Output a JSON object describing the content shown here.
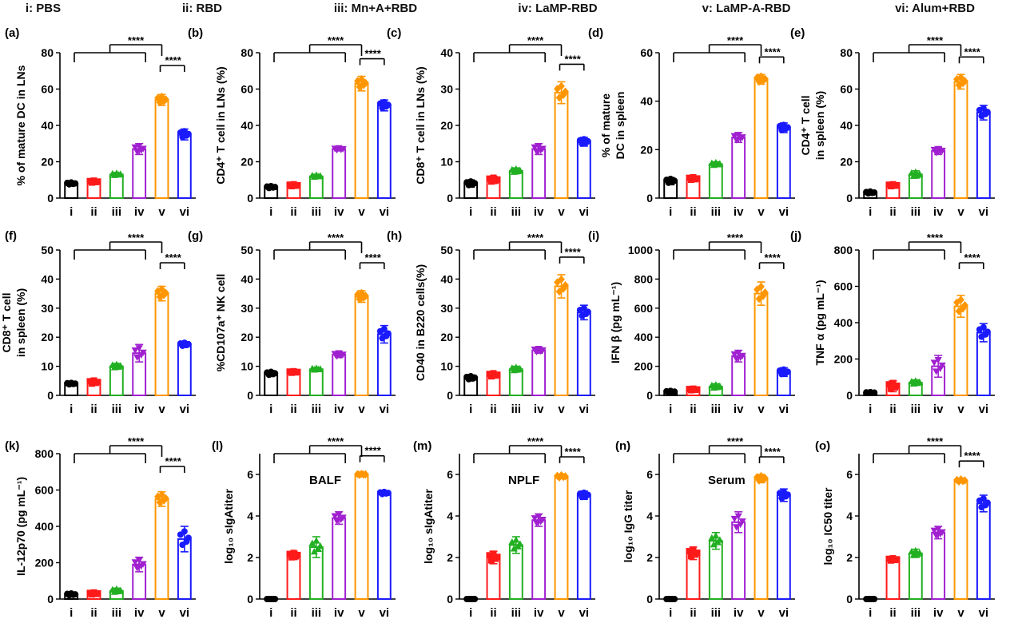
{
  "colors": {
    "i": "#000000",
    "ii": "#ff1a1a",
    "iii": "#22b022",
    "iv": "#a020d0",
    "v": "#ff9600",
    "vi": "#1a1aff"
  },
  "legend": [
    {
      "key": "i",
      "label": "i: PBS"
    },
    {
      "key": "ii",
      "label": "ii: RBD"
    },
    {
      "key": "iii",
      "label": "iii: Mn+A+RBD"
    },
    {
      "key": "iv",
      "label": "iv: LaMP-RBD"
    },
    {
      "key": "v",
      "label": "v: LaMP-A-RBD"
    },
    {
      "key": "vi",
      "label": "vi: Alum+RBD"
    }
  ],
  "significance": "****",
  "chart_data": [
    {
      "panel": "(a)",
      "type": "bar",
      "ylabel": [
        "% of mature DC in LNs"
      ],
      "ylim": [
        0,
        80
      ],
      "yticks": [
        0,
        20,
        40,
        60,
        80
      ],
      "categories": [
        "i",
        "ii",
        "iii",
        "iv",
        "v",
        "vi"
      ],
      "values": [
        8,
        9,
        13,
        27,
        54,
        35
      ],
      "errors": [
        1,
        1,
        1,
        3,
        3,
        3
      ]
    },
    {
      "panel": "(b)",
      "type": "bar",
      "ylabel": [
        "CD4⁺ T cell in LNs (%)"
      ],
      "ylim": [
        0,
        80
      ],
      "yticks": [
        0,
        20,
        40,
        60,
        80
      ],
      "categories": [
        "i",
        "ii",
        "iii",
        "iv",
        "v",
        "vi"
      ],
      "values": [
        6,
        7,
        12,
        27,
        63,
        51
      ],
      "errors": [
        1,
        1,
        1,
        1,
        4,
        3
      ]
    },
    {
      "panel": "(c)",
      "type": "bar",
      "ylabel": [
        "CD8⁺ T cell in LNs (%)"
      ],
      "ylim": [
        0,
        40
      ],
      "yticks": [
        0,
        10,
        20,
        30,
        40
      ],
      "categories": [
        "i",
        "ii",
        "iii",
        "iv",
        "v",
        "vi"
      ],
      "values": [
        4,
        5,
        7.5,
        13.5,
        29,
        15.5
      ],
      "errors": [
        1,
        1,
        0.8,
        1.5,
        3,
        1.2
      ]
    },
    {
      "panel": "(d)",
      "type": "bar",
      "ylabel": [
        "% of mature",
        "DC in spleen"
      ],
      "ylim": [
        0,
        60
      ],
      "yticks": [
        0,
        20,
        40,
        60
      ],
      "categories": [
        "i",
        "ii",
        "iii",
        "iv",
        "v",
        "vi"
      ],
      "values": [
        7,
        8,
        14,
        25,
        49,
        29
      ],
      "errors": [
        1.5,
        1,
        1,
        2,
        2,
        2
      ]
    },
    {
      "panel": "(e)",
      "type": "bar",
      "ylabel": [
        "CD4⁺ T cell",
        "in spleen (%)"
      ],
      "ylim": [
        0,
        80
      ],
      "yticks": [
        0,
        20,
        40,
        60,
        80
      ],
      "categories": [
        "i",
        "ii",
        "iii",
        "iv",
        "v",
        "vi"
      ],
      "values": [
        3,
        7,
        13,
        26,
        64,
        47
      ],
      "errors": [
        1,
        1,
        2,
        2,
        4,
        4
      ]
    },
    {
      "panel": "(f)",
      "type": "bar",
      "ylabel": [
        "CD8⁺ T cell",
        "in spleen (%)"
      ],
      "ylim": [
        0,
        50
      ],
      "yticks": [
        0,
        10,
        20,
        30,
        40,
        50
      ],
      "categories": [
        "i",
        "ii",
        "iii",
        "iv",
        "v",
        "vi"
      ],
      "values": [
        4,
        4.5,
        10,
        14.5,
        35,
        17.5
      ],
      "errors": [
        0.5,
        1,
        1,
        3,
        2.5,
        1
      ]
    },
    {
      "panel": "(g)",
      "type": "bar",
      "ylabel": [
        "%CD107a⁺ NK cell"
      ],
      "ylim": [
        0,
        50
      ],
      "yticks": [
        0,
        10,
        20,
        30,
        40,
        50
      ],
      "categories": [
        "i",
        "ii",
        "iii",
        "iv",
        "v",
        "vi"
      ],
      "values": [
        7.5,
        8,
        9,
        14,
        34,
        21
      ],
      "errors": [
        1,
        0.5,
        0.5,
        1,
        2,
        3
      ]
    },
    {
      "panel": "(h)",
      "type": "bar",
      "ylabel": [
        "CD40 in B220 cells(%)"
      ],
      "ylim": [
        0,
        50
      ],
      "yticks": [
        0,
        10,
        20,
        30,
        40,
        50
      ],
      "categories": [
        "i",
        "ii",
        "iii",
        "iv",
        "v",
        "vi"
      ],
      "values": [
        6,
        7,
        9,
        15.5,
        37.5,
        28.5
      ],
      "errors": [
        1,
        1,
        1,
        1,
        4,
        2.5
      ]
    },
    {
      "panel": "(i)",
      "type": "bar",
      "ylabel": [
        "IFN β (pg mL⁻¹)"
      ],
      "ylim": [
        0,
        1000
      ],
      "yticks": [
        0,
        200,
        400,
        600,
        800,
        1000
      ],
      "categories": [
        "i",
        "ii",
        "iii",
        "iv",
        "v",
        "vi"
      ],
      "values": [
        25,
        40,
        60,
        270,
        700,
        160
      ],
      "errors": [
        10,
        10,
        20,
        40,
        80,
        30
      ]
    },
    {
      "panel": "(j)",
      "type": "bar",
      "ylabel": [
        "TNF α (pg mL⁻¹)"
      ],
      "ylim": [
        0,
        800
      ],
      "yticks": [
        0,
        200,
        400,
        600,
        800
      ],
      "categories": [
        "i",
        "ii",
        "iii",
        "iv",
        "v",
        "vi"
      ],
      "values": [
        15,
        50,
        70,
        160,
        490,
        345
      ],
      "errors": [
        5,
        30,
        15,
        60,
        60,
        50
      ]
    },
    {
      "panel": "(k)",
      "type": "bar",
      "ylabel": [
        "IL-12p70 (pg mL⁻¹)"
      ],
      "ylim": [
        0,
        800
      ],
      "yticks": [
        0,
        200,
        400,
        600,
        800
      ],
      "categories": [
        "i",
        "ii",
        "iii",
        "iv",
        "v",
        "vi"
      ],
      "values": [
        25,
        30,
        45,
        190,
        550,
        330
      ],
      "errors": [
        10,
        10,
        15,
        40,
        40,
        70
      ]
    },
    {
      "panel": "(l)",
      "type": "bar",
      "ylabel": [
        "log₁₀ sIgAtiter"
      ],
      "ylim": [
        0,
        7
      ],
      "yticks": [
        0,
        2,
        4,
        6
      ],
      "categories": [
        "i",
        "ii",
        "iii",
        "iv",
        "v",
        "vi"
      ],
      "values": [
        0,
        2.1,
        2.5,
        3.9,
        6.0,
        5.1
      ],
      "errors": [
        0,
        0.2,
        0.5,
        0.3,
        0.05,
        0.1
      ],
      "annotation": "BALF"
    },
    {
      "panel": "(m)",
      "type": "bar",
      "ylabel": [
        "log₁₀ sIgAtiter"
      ],
      "ylim": [
        0,
        7
      ],
      "yticks": [
        0,
        2,
        4,
        6
      ],
      "categories": [
        "i",
        "ii",
        "iii",
        "iv",
        "v",
        "vi"
      ],
      "values": [
        0,
        2.0,
        2.6,
        3.8,
        5.9,
        5.0
      ],
      "errors": [
        0,
        0.3,
        0.4,
        0.3,
        0.1,
        0.2
      ],
      "annotation": "NPLF"
    },
    {
      "panel": "(n)",
      "type": "bar",
      "ylabel": [
        "log₁₀ IgG titer"
      ],
      "ylim": [
        0,
        7
      ],
      "yticks": [
        0,
        2,
        4,
        6
      ],
      "categories": [
        "i",
        "ii",
        "iii",
        "iv",
        "v",
        "vi"
      ],
      "values": [
        0,
        2.2,
        2.8,
        3.7,
        5.8,
        5.0
      ],
      "errors": [
        0,
        0.3,
        0.4,
        0.5,
        0.2,
        0.3
      ],
      "annotation": "Serum"
    },
    {
      "panel": "(o)",
      "type": "bar",
      "ylabel": [
        "log₁₀ IC50 titer"
      ],
      "ylim": [
        0,
        7
      ],
      "yticks": [
        0,
        2,
        4,
        6
      ],
      "categories": [
        "i",
        "ii",
        "iii",
        "iv",
        "v",
        "vi"
      ],
      "values": [
        0,
        1.9,
        2.2,
        3.2,
        5.7,
        4.6
      ],
      "errors": [
        0,
        0.1,
        0.2,
        0.3,
        0.1,
        0.4
      ]
    }
  ]
}
